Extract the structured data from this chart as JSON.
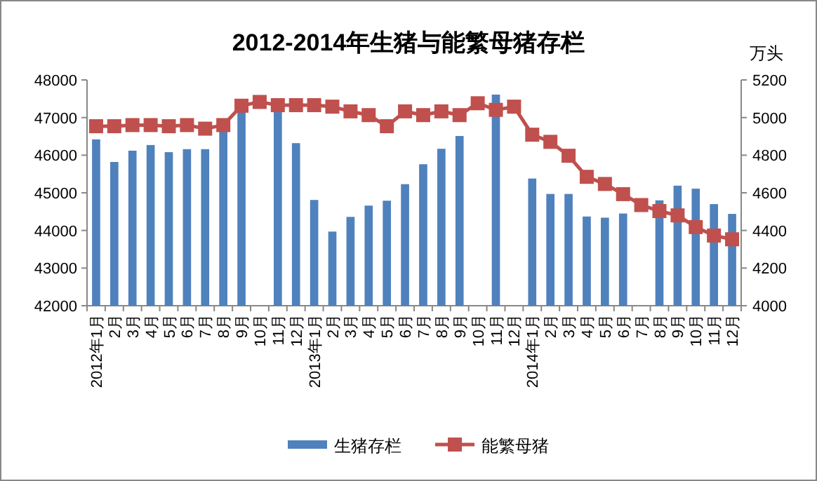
{
  "chart_data": {
    "type": "bar",
    "title": "2012-2014年生猪与能繁母猪存栏",
    "y2label": "万头",
    "categories": [
      "2012年1月",
      "2月",
      "3月",
      "4月",
      "5月",
      "6月",
      "7月",
      "8月",
      "9月",
      "10月",
      "11月",
      "12月",
      "2013年1月",
      "2月",
      "3月",
      "4月",
      "5月",
      "6月",
      "7月",
      "8月",
      "9月",
      "10月",
      "11月",
      "12月",
      "2014年1月",
      "2月",
      "3月",
      "4月",
      "5月",
      "6月",
      "7月",
      "8月",
      "9月",
      "10月",
      "11月",
      "12月"
    ],
    "series": [
      {
        "name": "生猪存栏",
        "color": "#4f81bd",
        "values": [
          46420,
          45820,
          46120,
          46270,
          46080,
          46160,
          46160,
          46670,
          47200,
          null,
          47200,
          46320,
          44810,
          43970,
          44360,
          44660,
          44790,
          45230,
          45760,
          46170,
          46510,
          null,
          47610,
          null,
          45380,
          44970,
          44970,
          44370,
          44340,
          44450,
          null,
          44800,
          45190,
          45110,
          44700,
          44440
        ]
      },
      {
        "name": "能繁母猪",
        "type": "line",
        "axis": "y2",
        "marker": "square",
        "color": "#c0504d",
        "values": [
          4954,
          4954,
          4960,
          4960,
          4954,
          4960,
          4941,
          4960,
          5063,
          5083,
          5066,
          5066,
          5066,
          5058,
          5033,
          5013,
          4954,
          5033,
          5013,
          5033,
          5013,
          5076,
          5041,
          5058,
          4909,
          4871,
          4797,
          4685,
          4647,
          4593,
          4535,
          4503,
          4480,
          4418,
          4373,
          4353
        ]
      }
    ],
    "ylim": [
      42000,
      48000
    ],
    "yticks": [
      42000,
      43000,
      44000,
      45000,
      46000,
      47000,
      48000
    ],
    "y2lim": [
      4000,
      5200
    ],
    "y2ticks": [
      4000,
      4200,
      4400,
      4600,
      4800,
      5000,
      5200
    ],
    "legend": "bottom"
  }
}
